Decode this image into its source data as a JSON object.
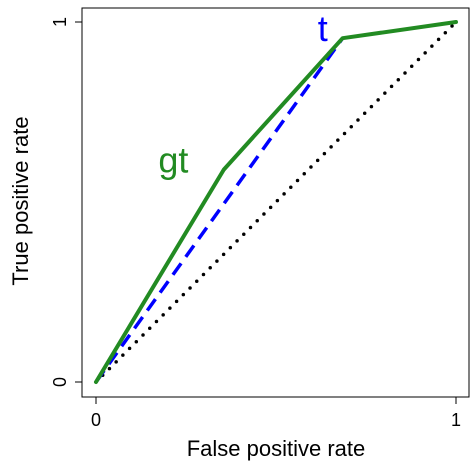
{
  "chart_data": {
    "type": "line",
    "title": "",
    "xlabel": "False positive rate",
    "ylabel": "True positive rate",
    "xlim": [
      0,
      1
    ],
    "ylim": [
      0,
      1
    ],
    "xticks": [
      0,
      1
    ],
    "yticks": [
      0,
      1
    ],
    "xtick_labels": [
      "0",
      "1"
    ],
    "ytick_labels": [
      "0",
      "1"
    ],
    "grid": false,
    "legend": "none",
    "series": [
      {
        "name": "gt",
        "color": "#228B22",
        "style": "solid",
        "x": [
          0,
          0.355,
          0.685,
          1
        ],
        "y": [
          0,
          0.59,
          0.955,
          1
        ]
      },
      {
        "name": "t",
        "color": "#0000FF",
        "style": "dashed",
        "x": [
          0,
          0.685
        ],
        "y": [
          0,
          0.955
        ]
      },
      {
        "color": "#000000",
        "style": "dotted",
        "x": [
          0,
          1
        ],
        "y": [
          0,
          1
        ]
      }
    ],
    "annotations": [
      {
        "text": "gt",
        "x": 0.215,
        "y": 0.59,
        "color": "#228B22"
      },
      {
        "text": "t",
        "x": 0.63,
        "y": 0.955,
        "color": "#0000FF"
      }
    ]
  }
}
